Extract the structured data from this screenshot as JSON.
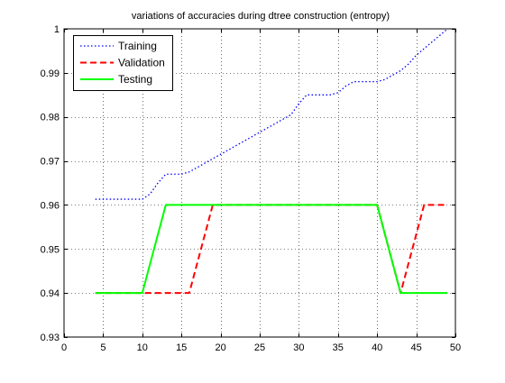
{
  "chart_data": {
    "type": "line",
    "title": "variations of accuracies during dtree construction (entropy)",
    "xlabel": "",
    "ylabel": "",
    "xlim": [
      0,
      50
    ],
    "ylim": [
      0.93,
      1
    ],
    "xticks": [
      0,
      5,
      10,
      15,
      20,
      25,
      30,
      35,
      40,
      45,
      50
    ],
    "yticks": [
      0.93,
      0.94,
      0.95,
      0.96,
      0.97,
      0.98,
      0.99,
      1
    ],
    "xtick_labels": [
      "0",
      "5",
      "10",
      "15",
      "20",
      "25",
      "30",
      "35",
      "40",
      "45",
      "50"
    ],
    "ytick_labels": [
      "0.93",
      "0.94",
      "0.95",
      "0.96",
      "0.97",
      "0.98",
      "0.99",
      "1"
    ],
    "grid": true,
    "legend_position": "top-left",
    "series": [
      {
        "name": "Training",
        "color": "#0000ff",
        "style": "dotted",
        "x": [
          4,
          5,
          6,
          7,
          8,
          9,
          10,
          11,
          12,
          13,
          14,
          15,
          16,
          17,
          18,
          19,
          20,
          21,
          22,
          23,
          24,
          25,
          26,
          27,
          28,
          29,
          30,
          31,
          32,
          33,
          34,
          35,
          36,
          37,
          38,
          39,
          40,
          41,
          42,
          43,
          44,
          45,
          46,
          47,
          48,
          49
        ],
        "y": [
          0.9613,
          0.9613,
          0.9613,
          0.9613,
          0.9613,
          0.9613,
          0.9613,
          0.9625,
          0.965,
          0.967,
          0.967,
          0.967,
          0.9675,
          0.9685,
          0.9695,
          0.9705,
          0.9715,
          0.9725,
          0.9735,
          0.9745,
          0.9755,
          0.9765,
          0.9775,
          0.9785,
          0.9795,
          0.9805,
          0.983,
          0.985,
          0.985,
          0.985,
          0.985,
          0.9855,
          0.987,
          0.988,
          0.988,
          0.988,
          0.988,
          0.9885,
          0.9895,
          0.9905,
          0.992,
          0.994,
          0.9955,
          0.997,
          0.9985,
          1.0
        ]
      },
      {
        "name": "Validation",
        "color": "#ff0000",
        "style": "dashed",
        "x": [
          4,
          10,
          16,
          19,
          40,
          43,
          46,
          49
        ],
        "y": [
          0.94,
          0.94,
          0.94,
          0.96,
          0.96,
          0.94,
          0.96,
          0.96
        ]
      },
      {
        "name": "Testing",
        "color": "#00ff00",
        "style": "solid",
        "x": [
          4,
          10,
          13,
          40,
          43,
          49
        ],
        "y": [
          0.94,
          0.94,
          0.96,
          0.96,
          0.94,
          0.94
        ]
      }
    ]
  }
}
